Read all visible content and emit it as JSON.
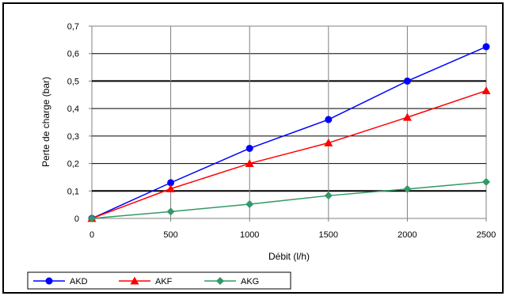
{
  "chart_data": {
    "type": "line",
    "title": "",
    "xlabel": "Débit (l/h)",
    "ylabel": "Perte de charge (bar)",
    "x": [
      0,
      500,
      1000,
      1500,
      2000,
      2500
    ],
    "xlim": [
      0,
      2500
    ],
    "ylim": [
      0,
      0.7
    ],
    "x_ticks": [
      "0",
      "500",
      "1000",
      "1500",
      "2000",
      "2500"
    ],
    "y_ticks": [
      "0",
      "0,1",
      "0,2",
      "0,3",
      "0,4",
      "0,5",
      "0,6",
      "0,7"
    ],
    "grid": true,
    "legend_position": "bottom-left",
    "series": [
      {
        "name": "AKD",
        "color": "#0000ff",
        "marker": "circle",
        "values": [
          0,
          0.13,
          0.255,
          0.36,
          0.5,
          0.625
        ]
      },
      {
        "name": "AKF",
        "color": "#ff0000",
        "marker": "triangle",
        "values": [
          0,
          0.108,
          0.2,
          0.275,
          0.368,
          0.465
        ]
      },
      {
        "name": "AKG",
        "color": "#339966",
        "marker": "diamond",
        "values": [
          0,
          0.025,
          0.052,
          0.083,
          0.107,
          0.133
        ]
      }
    ]
  }
}
